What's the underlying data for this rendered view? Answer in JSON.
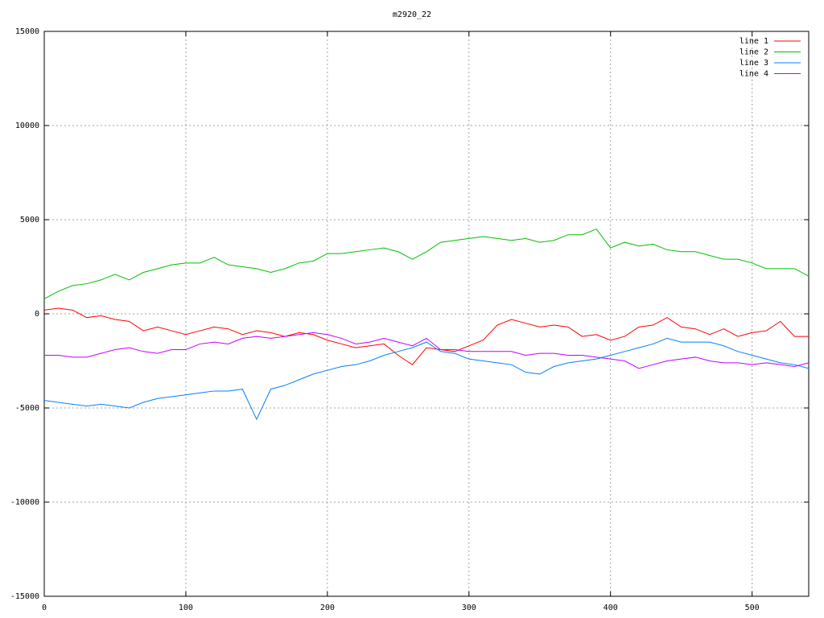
{
  "chart_data": {
    "type": "line",
    "title": "m2920_22",
    "x": [
      0,
      10,
      20,
      30,
      40,
      50,
      60,
      70,
      80,
      90,
      100,
      110,
      120,
      130,
      140,
      150,
      160,
      170,
      180,
      190,
      200,
      210,
      220,
      230,
      240,
      250,
      260,
      270,
      280,
      290,
      300,
      310,
      320,
      330,
      340,
      350,
      360,
      370,
      380,
      390,
      400,
      410,
      420,
      430,
      440,
      450,
      460,
      470,
      480,
      490,
      500,
      510,
      520,
      530,
      540
    ],
    "xlim": [
      0,
      540
    ],
    "xticks": [
      0,
      100,
      200,
      300,
      400,
      500
    ],
    "ylim": [
      -15000,
      15000
    ],
    "yticks": [
      -15000,
      -10000,
      -5000,
      0,
      5000,
      10000,
      15000
    ],
    "grid": true,
    "legend": "top-right",
    "series": [
      {
        "name": "line 1",
        "color": "#ff0000",
        "values": [
          200,
          300,
          200,
          -200,
          -100,
          -300,
          -400,
          -900,
          -700,
          -900,
          -1100,
          -900,
          -700,
          -800,
          -1100,
          -900,
          -1000,
          -1200,
          -1000,
          -1100,
          -1400,
          -1600,
          -1800,
          -1700,
          -1600,
          -2200,
          -2700,
          -1800,
          -1900,
          -2000,
          -1700,
          -1400,
          -600,
          -300,
          -500,
          -700,
          -600,
          -700,
          -1200,
          -1100,
          -1400,
          -1200,
          -700,
          -600,
          -200,
          -700,
          -800,
          -1100,
          -800,
          -1200,
          -1000,
          -900,
          -400,
          -1200,
          -1200
        ]
      },
      {
        "name": "line 2",
        "color": "#00c000",
        "values": [
          800,
          1200,
          1500,
          1600,
          1800,
          2100,
          1800,
          2200,
          2400,
          2600,
          2700,
          2700,
          3000,
          2600,
          2500,
          2400,
          2200,
          2400,
          2700,
          2800,
          3200,
          3200,
          3300,
          3400,
          3500,
          3300,
          2900,
          3300,
          3800,
          3900,
          4000,
          4100,
          4000,
          3900,
          4000,
          3800,
          3900,
          4200,
          4200,
          4500,
          3500,
          3800,
          3600,
          3700,
          3400,
          3300,
          3300,
          3100,
          2900,
          2900,
          2700,
          2400,
          2400,
          2400,
          2000
        ]
      },
      {
        "name": "line 3",
        "color": "#0080ff",
        "values": [
          -4600,
          -4700,
          -4800,
          -4900,
          -4800,
          -4900,
          -5000,
          -4700,
          -4500,
          -4400,
          -4300,
          -4200,
          -4100,
          -4100,
          -4000,
          -5600,
          -4000,
          -3800,
          -3500,
          -3200,
          -3000,
          -2800,
          -2700,
          -2500,
          -2200,
          -2000,
          -1800,
          -1500,
          -2000,
          -2100,
          -2400,
          -2500,
          -2600,
          -2700,
          -3100,
          -3200,
          -2800,
          -2600,
          -2500,
          -2400,
          -2200,
          -2000,
          -1800,
          -1600,
          -1300,
          -1500,
          -1500,
          -1500,
          -1700,
          -2000,
          -2200,
          -2400,
          -2600,
          -2700,
          -2900
        ]
      },
      {
        "name": "line 4",
        "color": "#c000ff",
        "values": [
          -2200,
          -2200,
          -2300,
          -2300,
          -2100,
          -1900,
          -1800,
          -2000,
          -2100,
          -1900,
          -1900,
          -1600,
          -1500,
          -1600,
          -1300,
          -1200,
          -1300,
          -1200,
          -1100,
          -1000,
          -1100,
          -1300,
          -1600,
          -1500,
          -1300,
          -1500,
          -1700,
          -1300,
          -1900,
          -1900,
          -2000,
          -2000,
          -2000,
          -2000,
          -2200,
          -2100,
          -2100,
          -2200,
          -2200,
          -2300,
          -2400,
          -2500,
          -2900,
          -2700,
          -2500,
          -2400,
          -2300,
          -2500,
          -2600,
          -2600,
          -2700,
          -2600,
          -2700,
          -2800,
          -2600
        ]
      }
    ]
  }
}
